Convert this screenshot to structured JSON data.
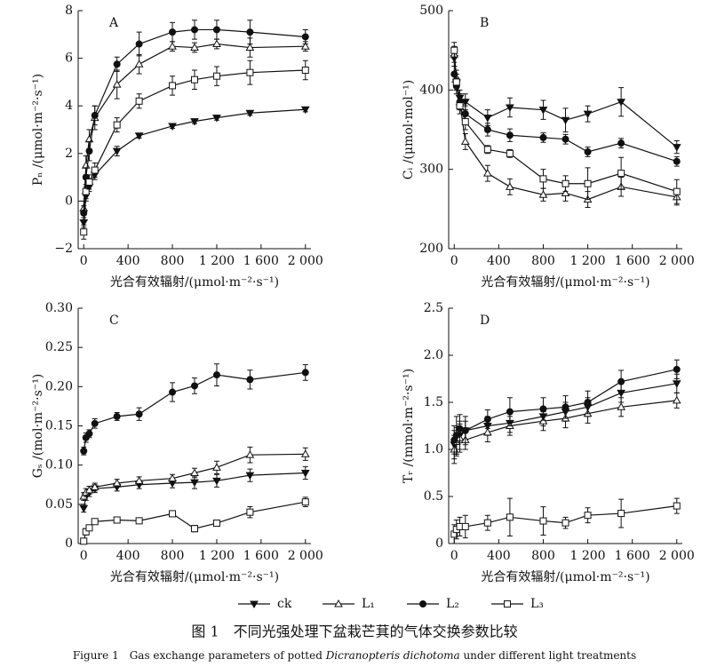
{
  "chart_data": [
    {
      "type": "line",
      "label": "A",
      "y_label": "Pₙ /(μmol·m⁻²·s⁻¹)",
      "x_label": "光合有效辐射/(μmol·m⁻²·s⁻¹)",
      "x": [
        0,
        20,
        50,
        100,
        300,
        500,
        800,
        1000,
        1200,
        1500,
        2000
      ],
      "xlim": [
        -50,
        2050
      ],
      "xticks": [
        0,
        400,
        800,
        {
          "value": 1200,
          "label": "1 200"
        },
        {
          "value": 1600,
          "label": "1 600"
        },
        {
          "value": 2000,
          "label": "2 000"
        }
      ],
      "ylim": [
        -2,
        8
      ],
      "yticks": [
        {
          "value": -2,
          "label": "−2"
        },
        0,
        2,
        4,
        6,
        8
      ],
      "series": [
        {
          "values": [
            -0.9,
            0.2,
            0.6,
            1.1,
            2.1,
            2.75,
            3.15,
            3.35,
            3.5,
            3.7,
            3.85
          ],
          "errors": [
            0.2,
            0.2,
            0.2,
            0.2,
            0.2,
            0.1,
            0.1,
            0.1,
            0.1,
            0.1,
            0.1
          ]
        },
        {
          "values": [
            -0.3,
            1.5,
            2.6,
            3.5,
            4.9,
            5.75,
            6.5,
            6.45,
            6.6,
            6.45,
            6.5
          ],
          "errors": [
            0.3,
            0.4,
            0.4,
            0.5,
            0.6,
            0.4,
            0.2,
            0.2,
            0.2,
            0.4,
            0.2
          ]
        },
        {
          "values": [
            -0.5,
            1.0,
            2.1,
            3.6,
            5.75,
            6.6,
            7.1,
            7.2,
            7.2,
            7.1,
            6.9
          ],
          "errors": [
            0.3,
            0.4,
            0.4,
            0.4,
            0.3,
            0.5,
            0.4,
            0.4,
            0.4,
            0.5,
            0.3
          ]
        },
        {
          "values": [
            -1.3,
            0.4,
            0.8,
            1.3,
            3.2,
            4.2,
            4.85,
            5.1,
            5.25,
            5.4,
            5.5
          ],
          "errors": [
            0.3,
            0.3,
            0.3,
            0.3,
            0.3,
            0.3,
            0.4,
            0.4,
            0.4,
            0.5,
            0.4
          ]
        }
      ]
    },
    {
      "type": "line",
      "label": "B",
      "y_label": "Cᵢ /(μmol·mol⁻¹)",
      "x_label": "光合有效辐射/(μmol·m⁻²·s⁻¹)",
      "x": [
        0,
        20,
        50,
        100,
        300,
        500,
        800,
        1000,
        1200,
        1500,
        2000
      ],
      "xlim": [
        -50,
        2050
      ],
      "xticks": [
        0,
        400,
        800,
        {
          "value": 1200,
          "label": "1 200"
        },
        {
          "value": 1600,
          "label": "1 600"
        },
        {
          "value": 2000,
          "label": "2 000"
        }
      ],
      "ylim": [
        200,
        500
      ],
      "yticks": [
        200,
        300,
        400,
        500
      ],
      "series": [
        {
          "values": [
            440,
            410,
            390,
            385,
            365,
            378,
            375,
            362,
            370,
            385,
            328
          ],
          "errors": [
            10,
            10,
            10,
            10,
            10,
            12,
            12,
            15,
            10,
            18,
            8
          ]
        },
        {
          "values": [
            445,
            415,
            385,
            335,
            295,
            278,
            268,
            270,
            262,
            278,
            265
          ],
          "errors": [
            10,
            10,
            10,
            10,
            10,
            10,
            8,
            10,
            10,
            12,
            10
          ]
        },
        {
          "values": [
            420,
            405,
            385,
            370,
            350,
            343,
            340,
            338,
            322,
            333,
            310
          ],
          "errors": [
            10,
            10,
            10,
            10,
            8,
            8,
            6,
            6,
            6,
            6,
            6
          ]
        },
        {
          "values": [
            450,
            410,
            380,
            360,
            325,
            320,
            288,
            282,
            282,
            295,
            272
          ],
          "errors": [
            10,
            10,
            10,
            10,
            5,
            5,
            12,
            10,
            20,
            20,
            15
          ]
        }
      ]
    },
    {
      "type": "line",
      "label": "C",
      "y_label": "Gₛ /(mol·m⁻²·s⁻¹)",
      "x_label": "光合有效辐射/(μmol·m⁻²·s⁻¹)",
      "x": [
        0,
        20,
        50,
        100,
        300,
        500,
        800,
        1000,
        1200,
        1500,
        2000
      ],
      "xlim": [
        -50,
        2050
      ],
      "xticks": [
        0,
        400,
        800,
        {
          "value": 1200,
          "label": "1 200"
        },
        {
          "value": 1600,
          "label": "1 600"
        },
        {
          "value": 2000,
          "label": "2 000"
        }
      ],
      "ylim": [
        0,
        0.3
      ],
      "yticks": [
        0,
        0.05,
        {
          "value": 0.1,
          "label": "0.10"
        },
        0.15,
        {
          "value": 0.2,
          "label": "0.20"
        },
        0.25,
        {
          "value": 0.3,
          "label": "0.30"
        }
      ],
      "series": [
        {
          "values": [
            0.045,
            0.06,
            0.065,
            0.07,
            0.072,
            0.075,
            0.077,
            0.078,
            0.08,
            0.087,
            0.09
          ],
          "errors": [
            0.005,
            0.005,
            0.005,
            0.005,
            0.005,
            0.005,
            0.006,
            0.008,
            0.008,
            0.008,
            0.008
          ]
        },
        {
          "values": [
            0.06,
            0.065,
            0.068,
            0.072,
            0.077,
            0.08,
            0.083,
            0.09,
            0.097,
            0.113,
            0.114
          ],
          "errors": [
            0.005,
            0.005,
            0.005,
            0.005,
            0.005,
            0.005,
            0.005,
            0.006,
            0.008,
            0.01,
            0.008
          ]
        },
        {
          "values": [
            0.118,
            0.135,
            0.14,
            0.153,
            0.162,
            0.165,
            0.193,
            0.201,
            0.215,
            0.209,
            0.218
          ],
          "errors": [
            0.005,
            0.006,
            0.005,
            0.006,
            0.005,
            0.008,
            0.012,
            0.01,
            0.014,
            0.012,
            0.01
          ]
        },
        {
          "values": [
            0.003,
            0.015,
            0.02,
            0.028,
            0.03,
            0.029,
            0.038,
            0.019,
            0.026,
            0.04,
            0.053
          ],
          "errors": [
            0.003,
            0.004,
            0.003,
            0.003,
            0.004,
            0.003,
            0.003,
            0.004,
            0.003,
            0.007,
            0.006
          ]
        }
      ]
    },
    {
      "type": "line",
      "label": "D",
      "y_label": "Tᵣ /(mmol·m⁻²·s⁻¹)",
      "x_label": "光合有效辐射/(μmol·m⁻²·s⁻¹)",
      "x": [
        0,
        20,
        50,
        100,
        300,
        500,
        800,
        1000,
        1200,
        1500,
        2000
      ],
      "xlim": [
        -50,
        2050
      ],
      "xticks": [
        0,
        400,
        800,
        {
          "value": 1200,
          "label": "1 200"
        },
        {
          "value": 1600,
          "label": "1 600"
        },
        {
          "value": 2000,
          "label": "2 000"
        }
      ],
      "ylim": [
        0,
        2.5
      ],
      "yticks": [
        0,
        0.5,
        {
          "value": 1,
          "label": "1.0"
        },
        1.5,
        {
          "value": 2,
          "label": "2.0"
        },
        2.5
      ],
      "series": [
        {
          "values": [
            1.05,
            1.1,
            1.15,
            1.2,
            1.25,
            1.28,
            1.35,
            1.4,
            1.45,
            1.6,
            1.7
          ],
          "errors": [
            0.15,
            0.15,
            0.15,
            0.1,
            0.1,
            0.1,
            0.1,
            0.1,
            0.1,
            0.1,
            0.1
          ]
        },
        {
          "values": [
            1.0,
            1.08,
            1.12,
            1.1,
            1.18,
            1.25,
            1.3,
            1.33,
            1.38,
            1.45,
            1.52
          ],
          "errors": [
            0.15,
            0.15,
            0.15,
            0.1,
            0.1,
            0.1,
            0.1,
            0.1,
            0.1,
            0.1,
            0.08
          ]
        },
        {
          "values": [
            1.1,
            1.15,
            1.22,
            1.2,
            1.32,
            1.4,
            1.43,
            1.45,
            1.5,
            1.72,
            1.85
          ],
          "errors": [
            0.15,
            0.2,
            0.15,
            0.15,
            0.1,
            0.15,
            0.12,
            0.12,
            0.12,
            0.12,
            0.1
          ]
        },
        {
          "values": [
            0.1,
            0.15,
            0.18,
            0.18,
            0.22,
            0.28,
            0.24,
            0.22,
            0.3,
            0.32,
            0.4
          ],
          "errors": [
            0.1,
            0.1,
            0.1,
            0.12,
            0.08,
            0.2,
            0.15,
            0.06,
            0.08,
            0.15,
            0.08
          ]
        }
      ]
    }
  ],
  "legend": [
    {
      "name": "ck",
      "marker": "tri-down"
    },
    {
      "name": "L₁",
      "marker": "tri-up-open"
    },
    {
      "name": "L₂",
      "marker": "circle"
    },
    {
      "name": "L₃",
      "marker": "square-open"
    }
  ],
  "caption": {
    "cn": "图 1　不同光强处理下盆栽芒萁的气体交换参数比较",
    "en_pre": "Figure 1　Gas exchange parameters of potted ",
    "en_species": "Dicranopteris dichotoma",
    "en_post": " under different light treatments"
  }
}
